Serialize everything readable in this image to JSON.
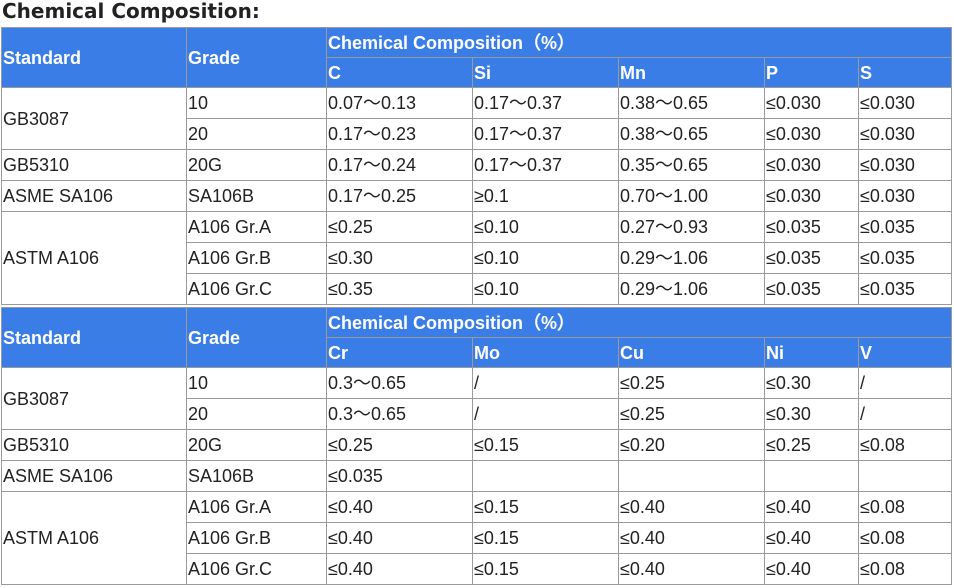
{
  "title": "Chemical Composition:",
  "tables": [
    {
      "header": {
        "standard": "Standard",
        "grade": "Grade",
        "group": "Chemical Composition（%）",
        "elements": [
          "C",
          "Si",
          "Mn",
          "P",
          "S"
        ]
      },
      "groups": [
        {
          "standard": "GB3087",
          "rows": [
            [
              "10",
              "0.07～0.13",
              "0.17～0.37",
              "0.38～0.65",
              "≤0.030",
              "≤0.030"
            ],
            [
              "20",
              "0.17～0.23",
              "0.17～0.37",
              "0.38～0.65",
              "≤0.030",
              "≤0.030"
            ]
          ]
        },
        {
          "standard": "GB5310",
          "rows": [
            [
              "20G",
              "0.17～0.24",
              "0.17～0.37",
              "0.35～0.65",
              "≤0.030",
              "≤0.030"
            ]
          ]
        },
        {
          "standard": "ASME SA106",
          "rows": [
            [
              "SA106B",
              "0.17～0.25",
              "≥0.1",
              "0.70～1.00",
              "≤0.030",
              "≤0.030"
            ]
          ]
        },
        {
          "standard": "ASTM A106",
          "rows": [
            [
              "A106 Gr.A",
              "≤0.25",
              "≤0.10",
              "0.27～0.93",
              "≤0.035",
              "≤0.035"
            ],
            [
              "A106 Gr.B",
              "≤0.30",
              "≤0.10",
              "0.29～1.06",
              "≤0.035",
              "≤0.035"
            ],
            [
              "A106 Gr.C",
              "≤0.35",
              "≤0.10",
              "0.29～1.06",
              "≤0.035",
              "≤0.035"
            ]
          ]
        }
      ]
    },
    {
      "header": {
        "standard": "Standard",
        "grade": "Grade",
        "group": "Chemical Composition（%）",
        "elements": [
          "Cr",
          "Mo",
          "Cu",
          "Ni",
          "V"
        ]
      },
      "groups": [
        {
          "standard": "GB3087",
          "rows": [
            [
              "10",
              "0.3～0.65",
              "/",
              "≤0.25",
              "≤0.30",
              "/"
            ],
            [
              "20",
              "0.3～0.65",
              "/",
              "≤0.25",
              "≤0.30",
              "/"
            ]
          ]
        },
        {
          "standard": "GB5310",
          "rows": [
            [
              "20G",
              "≤0.25",
              "≤0.15",
              "≤0.20",
              "≤0.25",
              "≤0.08"
            ]
          ]
        },
        {
          "standard": "ASME SA106",
          "rows": [
            [
              "SA106B",
              "≤0.035"
            ]
          ]
        },
        {
          "standard": "ASTM A106",
          "rows": [
            [
              "A106 Gr.A",
              "≤0.40",
              "≤0.15",
              "≤0.40",
              "≤0.40",
              "≤0.08"
            ],
            [
              "A106 Gr.B",
              "≤0.40",
              "≤0.15",
              "≤0.40",
              "≤0.40",
              "≤0.08"
            ],
            [
              "A106 Gr.C",
              "≤0.40",
              "≤0.15",
              "≤0.40",
              "≤0.40",
              "≤0.08"
            ]
          ]
        }
      ]
    }
  ]
}
